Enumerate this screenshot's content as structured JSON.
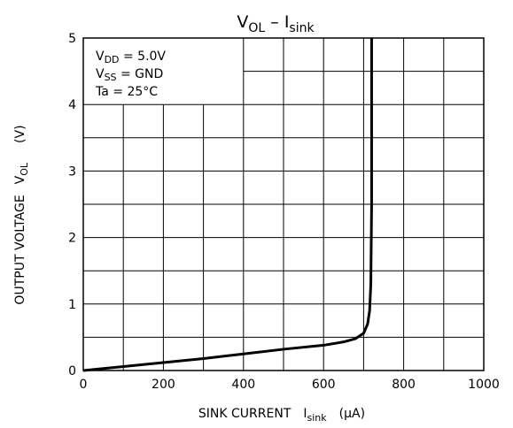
{
  "chart_data": {
    "type": "line",
    "title": {
      "main": "V",
      "main_sub": "OL",
      "sep": " – ",
      "second": "I",
      "second_sub": "sink"
    },
    "xlabel": {
      "main": "SINK CURRENT",
      "sym": "I",
      "sub": "sink",
      "unit": "(μA)"
    },
    "ylabel": {
      "main": "OUTPUT VOLTAGE",
      "sym": "V",
      "sub": "OL",
      "unit": "(V)"
    },
    "xlim": [
      0,
      1000
    ],
    "ylim": [
      0,
      5
    ],
    "x_ticks": [
      "0",
      "200",
      "400",
      "600",
      "800",
      "1000"
    ],
    "y_ticks": [
      "0",
      "1",
      "2",
      "3",
      "4",
      "5"
    ],
    "grid": true,
    "conditions": [
      {
        "main": "V",
        "sub": "DD",
        "rest": " = 5.0V"
      },
      {
        "main": "V",
        "sub": "SS",
        "rest": " = GND"
      },
      {
        "main": "Ta = 25°C",
        "sub": "",
        "rest": ""
      }
    ],
    "series": [
      {
        "x": [
          0,
          100,
          200,
          300,
          400,
          500,
          600,
          650,
          680,
          700,
          710,
          715,
          718,
          720,
          720
        ],
        "y": [
          0,
          0.06,
          0.12,
          0.18,
          0.25,
          0.32,
          0.38,
          0.43,
          0.48,
          0.56,
          0.7,
          0.9,
          1.3,
          2.5,
          5
        ]
      }
    ],
    "line_color": "#000000"
  }
}
